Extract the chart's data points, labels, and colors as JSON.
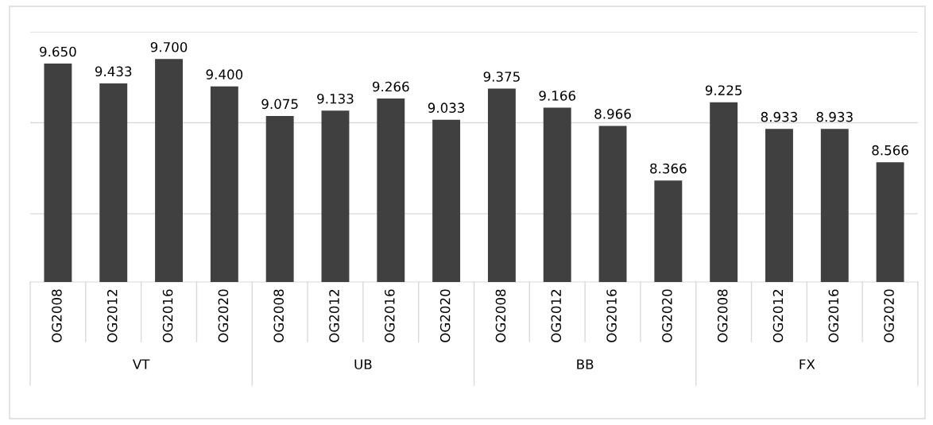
{
  "chart_data": {
    "type": "bar",
    "categories": [
      "OG2008",
      "OG2012",
      "OG2016",
      "OG2020",
      "OG2008",
      "OG2012",
      "OG2016",
      "OG2020",
      "OG2008",
      "OG2012",
      "OG2016",
      "OG2020",
      "OG2008",
      "OG2012",
      "OG2016",
      "OG2020"
    ],
    "values": [
      9.65,
      9.433,
      9.7,
      9.4,
      9.075,
      9.133,
      9.266,
      9.033,
      9.375,
      9.166,
      8.966,
      8.366,
      9.225,
      8.933,
      8.933,
      8.566
    ],
    "value_labels": [
      "9.650",
      "9.433",
      "9.700",
      "9.400",
      "9.075",
      "9.133",
      "9.266",
      "9.033",
      "9.375",
      "9.166",
      "8.966",
      "8.366",
      "9.225",
      "8.933",
      "8.933",
      "8.566"
    ],
    "color": "#404040",
    "annotations": [
      "VT",
      "UB",
      "BB",
      "FX"
    ],
    "ylim": [
      7.25,
      10
    ],
    "ref_lines": [
      {
        "axis": "y",
        "value": 8,
        "color": "#d9d9d9"
      },
      {
        "axis": "y",
        "value": 9,
        "color": "#d9d9d9"
      },
      {
        "axis": "y",
        "value": 10,
        "color": "#d9d9d9"
      }
    ],
    "tick_labels": "x",
    "legend": false
  }
}
